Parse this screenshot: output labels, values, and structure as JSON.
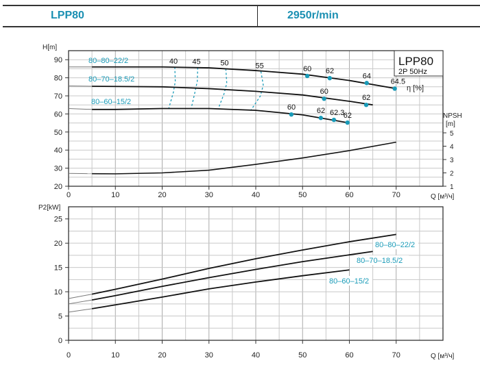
{
  "header": {
    "model": "LPP80",
    "speed": "2950r/min"
  },
  "colors": {
    "accent": "#1a9bb8",
    "curve": "#111111",
    "grid": "#c8c8c8"
  },
  "chart_data": [
    {
      "type": "line",
      "title": "LPP80",
      "subtitle": "2P  50Hz",
      "xlabel": "Q [м³/ч]",
      "ylabel": "H[m]",
      "y2label": [
        "NPSH",
        "[m]"
      ],
      "efficiency_label": "η [%]",
      "xlim": [
        0,
        80
      ],
      "ylim": [
        20,
        95
      ],
      "y2lim": [
        1,
        5
      ],
      "xticks": [
        0,
        10,
        20,
        30,
        40,
        50,
        60,
        70
      ],
      "yticks": [
        20,
        30,
        40,
        50,
        60,
        70,
        80,
        90
      ],
      "y2ticks": [
        1,
        2,
        3,
        4,
        5
      ],
      "grid": true,
      "series": [
        {
          "name": "80-80-22/2",
          "label": "80–80–22/2",
          "x": [
            0,
            5,
            10,
            20,
            30,
            40,
            50,
            60,
            70
          ],
          "y": [
            86,
            86,
            86,
            86,
            85.5,
            84,
            82,
            78.5,
            74
          ],
          "eff_points": [
            {
              "q": 51,
              "h": 81,
              "label": "60"
            },
            {
              "q": 55.8,
              "h": 79.8,
              "label": "62"
            },
            {
              "q": 63.7,
              "h": 77.1,
              "label": "64"
            },
            {
              "q": 69.7,
              "h": 74,
              "label": "64.5"
            }
          ]
        },
        {
          "name": "80-70-18.5/2",
          "label": "80–70–18.5/2",
          "x": [
            0,
            5,
            10,
            20,
            30,
            40,
            50,
            60,
            65
          ],
          "y": [
            75.5,
            75.3,
            75.2,
            75,
            74,
            72.5,
            70.5,
            67,
            65
          ],
          "eff_points": [
            {
              "q": 54.6,
              "h": 68.4,
              "label": "60"
            },
            {
              "q": 63.6,
              "h": 65,
              "label": "62"
            }
          ]
        },
        {
          "name": "80-60-15/2",
          "label": "80–60–15/2",
          "x": [
            0,
            5,
            10,
            20,
            30,
            40,
            50,
            60
          ],
          "y": [
            63,
            62.5,
            62.5,
            63,
            63,
            62,
            59.5,
            55
          ],
          "eff_points": [
            {
              "q": 47.6,
              "h": 59.7,
              "label": "60"
            },
            {
              "q": 53.9,
              "h": 57.8,
              "label": "62"
            },
            {
              "q": 56.7,
              "h": 56.7,
              "label": "62.3"
            },
            {
              "q": 59.6,
              "h": 55.2,
              "label": "62"
            }
          ]
        }
      ],
      "npsh": {
        "name": "NPSH",
        "x": [
          0,
          5,
          10,
          20,
          30,
          40,
          50,
          60,
          70
        ],
        "y": [
          1.96,
          1.94,
          1.93,
          2.0,
          2.2,
          2.64,
          3.12,
          3.67,
          4.3
        ]
      },
      "efficiency_isolines": [
        {
          "label": "40",
          "q": [
            22.7,
            22.8,
            22.4,
            21.4
          ],
          "h": [
            86,
            78,
            72,
            63
          ]
        },
        {
          "label": "45",
          "q": [
            27.6,
            27.5,
            27.0,
            26.2
          ],
          "h": [
            85.7,
            78,
            72,
            63
          ]
        },
        {
          "label": "50",
          "q": [
            33.6,
            33.8,
            33.2,
            32.0
          ],
          "h": [
            85,
            77,
            71,
            63
          ]
        },
        {
          "label": "55",
          "q": [
            41.1,
            41.6,
            41.0,
            38.9
          ],
          "h": [
            83.5,
            76,
            70,
            61.8
          ]
        }
      ]
    },
    {
      "type": "line",
      "xlabel": "Q [м³/ч]",
      "ylabel": "P2[kW]",
      "xlim": [
        0,
        80
      ],
      "ylim": [
        0,
        27.5
      ],
      "xticks": [
        0,
        10,
        20,
        30,
        40,
        50,
        60,
        70
      ],
      "yticks": [
        0,
        5,
        10,
        15,
        20,
        25
      ],
      "grid": true,
      "series": [
        {
          "name": "80-80-22/2",
          "label": "80–80–22/2",
          "x": [
            0,
            5,
            10,
            20,
            30,
            40,
            50,
            60,
            70
          ],
          "y": [
            8.6,
            9.5,
            10.5,
            12.6,
            14.8,
            16.8,
            18.6,
            20.3,
            21.8
          ]
        },
        {
          "name": "80-70-18.5/2",
          "label": "80–70–18.5/2",
          "x": [
            0,
            5,
            10,
            20,
            30,
            40,
            50,
            60,
            65
          ],
          "y": [
            7.5,
            8.3,
            9.2,
            11.1,
            12.9,
            14.6,
            16.2,
            17.6,
            18.3
          ]
        },
        {
          "name": "80-60-15/2",
          "label": "80–60–15/2",
          "x": [
            0,
            5,
            10,
            20,
            30,
            40,
            50,
            60
          ],
          "y": [
            5.8,
            6.5,
            7.3,
            8.9,
            10.6,
            12.0,
            13.3,
            14.5
          ]
        }
      ]
    }
  ]
}
